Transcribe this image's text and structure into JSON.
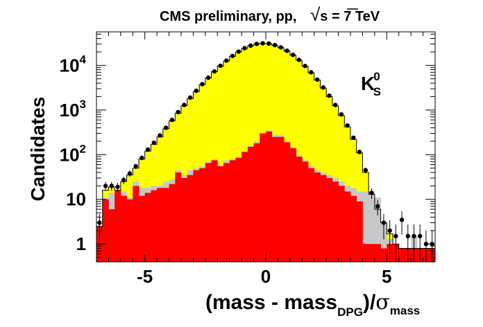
{
  "chart_data": {
    "type": "histogram",
    "title": "CMS preliminary, pp,  √s = 7 TeV",
    "title_prefix": "CMS preliminary, pp,",
    "title_sqrt": "√",
    "title_s": "s = 7 TeV",
    "ylabel": "Candidates",
    "xlabel_prefix": "(mass - mass",
    "xlabel_sub": "DPG",
    "xlabel_mid": ")/",
    "xlabel_sigma": "σ",
    "xlabel_sigma_sub": "mass",
    "annotation": {
      "main": "K",
      "sup": "0",
      "sub": "S"
    },
    "xlim": [
      -7,
      7
    ],
    "ylim_log10": [
      -0.4,
      4.75
    ],
    "yscale": "log",
    "x_ticks": [
      {
        "value": -5,
        "label": "-5"
      },
      {
        "value": 0,
        "label": "0"
      },
      {
        "value": 5,
        "label": "5"
      }
    ],
    "y_ticks": [
      {
        "value": 1,
        "label": "1",
        "sup": ""
      },
      {
        "value": 10,
        "label": "10",
        "sup": ""
      },
      {
        "value": 100,
        "label": "10",
        "sup": "2"
      },
      {
        "value": 1000,
        "label": "10",
        "sup": "3"
      },
      {
        "value": 10000,
        "label": "10",
        "sup": "4"
      }
    ],
    "colors": {
      "total": "#ffff00",
      "gray": "#c8c8c8",
      "red": "#ff0000",
      "points": "#000000"
    },
    "bin_width": 0.25,
    "bin_edges_start": -7,
    "series": [
      {
        "name": "total",
        "values": [
          2.5,
          16,
          19,
          16,
          25,
          35,
          50,
          80,
          120,
          170,
          250,
          380,
          570,
          850,
          1250,
          1800,
          2600,
          3700,
          5200,
          7200,
          9600,
          12500,
          16000,
          20000,
          24000,
          27500,
          30000,
          31000,
          30500,
          28000,
          25000,
          21000,
          17000,
          13000,
          9500,
          6800,
          4700,
          3100,
          2000,
          1250,
          750,
          420,
          220,
          110,
          40,
          13,
          6,
          3,
          1.7,
          1,
          0.8,
          0.8,
          0.8,
          0.8,
          0.8,
          0.8
        ]
      },
      {
        "name": "gray",
        "values": [
          2.5,
          11,
          14,
          12,
          15,
          11,
          25,
          18,
          18,
          20,
          20,
          25,
          28,
          45,
          35,
          45,
          50,
          55,
          70,
          80,
          60,
          75,
          80,
          90,
          120,
          160,
          200,
          300,
          350,
          280,
          270,
          200,
          150,
          100,
          75,
          55,
          45,
          40,
          35,
          30,
          25,
          20,
          18,
          15,
          15,
          15,
          11,
          3,
          1.3,
          0.8,
          0.8,
          0.8,
          1.5,
          0.8,
          0.8,
          0.8
        ]
      },
      {
        "name": "red",
        "values": [
          2.5,
          10,
          6,
          16,
          12,
          10,
          20,
          12,
          14,
          16,
          18,
          18,
          22,
          40,
          30,
          35,
          45,
          50,
          65,
          75,
          55,
          65,
          75,
          85,
          115,
          150,
          180,
          300,
          330,
          250,
          250,
          190,
          140,
          90,
          70,
          50,
          40,
          35,
          30,
          25,
          20,
          15,
          12,
          9,
          1,
          1,
          1,
          0.8,
          1,
          1,
          0.8,
          0.8,
          0.8,
          0.8,
          0.8,
          0.8
        ]
      }
    ],
    "points": [
      {
        "x": -6.875,
        "y": 3
      },
      {
        "x": -6.625,
        "y": 20
      },
      {
        "x": -6.375,
        "y": 20
      },
      {
        "x": -6.125,
        "y": 19
      },
      {
        "x": -5.875,
        "y": 27
      },
      {
        "x": -5.625,
        "y": 38
      },
      {
        "x": -5.375,
        "y": 55
      },
      {
        "x": -5.125,
        "y": 85
      },
      {
        "x": -4.875,
        "y": 130
      },
      {
        "x": -4.625,
        "y": 185
      },
      {
        "x": -4.375,
        "y": 270
      },
      {
        "x": -4.125,
        "y": 400
      },
      {
        "x": -3.875,
        "y": 600
      },
      {
        "x": -3.625,
        "y": 900
      },
      {
        "x": -3.375,
        "y": 1300
      },
      {
        "x": -3.125,
        "y": 1900
      },
      {
        "x": -2.875,
        "y": 2700
      },
      {
        "x": -2.625,
        "y": 3800
      },
      {
        "x": -2.375,
        "y": 5300
      },
      {
        "x": -2.125,
        "y": 7300
      },
      {
        "x": -1.875,
        "y": 9800
      },
      {
        "x": -1.625,
        "y": 12800
      },
      {
        "x": -1.375,
        "y": 16300
      },
      {
        "x": -1.125,
        "y": 20300
      },
      {
        "x": -0.875,
        "y": 24300
      },
      {
        "x": -0.625,
        "y": 27700
      },
      {
        "x": -0.375,
        "y": 30200
      },
      {
        "x": -0.125,
        "y": 31200
      },
      {
        "x": 0.125,
        "y": 30800
      },
      {
        "x": 0.375,
        "y": 28400
      },
      {
        "x": 0.625,
        "y": 25300
      },
      {
        "x": 0.875,
        "y": 21300
      },
      {
        "x": 1.125,
        "y": 17200
      },
      {
        "x": 1.375,
        "y": 13300
      },
      {
        "x": 1.625,
        "y": 9700
      },
      {
        "x": 1.875,
        "y": 7000
      },
      {
        "x": 2.125,
        "y": 4800
      },
      {
        "x": 2.375,
        "y": 3200
      },
      {
        "x": 2.625,
        "y": 2100
      },
      {
        "x": 2.875,
        "y": 1300
      },
      {
        "x": 3.125,
        "y": 800
      },
      {
        "x": 3.375,
        "y": 450
      },
      {
        "x": 3.625,
        "y": 240
      },
      {
        "x": 3.875,
        "y": 115
      },
      {
        "x": 4.125,
        "y": 45
      },
      {
        "x": 4.375,
        "y": 14
      },
      {
        "x": 4.625,
        "y": 7
      },
      {
        "x": 4.875,
        "y": 3
      },
      {
        "x": 5.125,
        "y": 2
      },
      {
        "x": 5.375,
        "y": 1.5
      },
      {
        "x": 5.625,
        "y": 3.5
      },
      {
        "x": 5.875,
        "y": 1.5
      },
      {
        "x": 6.125,
        "y": 1.5
      },
      {
        "x": 6.375,
        "y": 1.5
      },
      {
        "x": 6.625,
        "y": 1
      },
      {
        "x": 6.875,
        "y": 1
      }
    ]
  }
}
